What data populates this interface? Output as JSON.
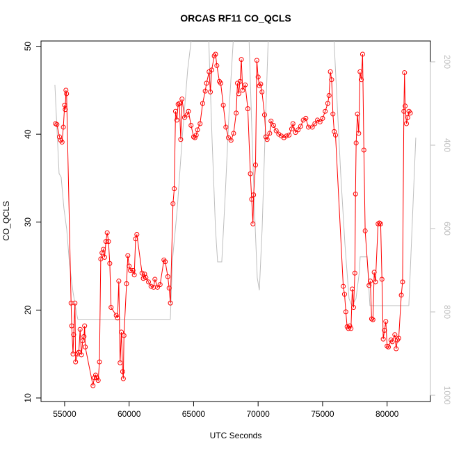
{
  "chart_data": {
    "type": "line",
    "title": "ORCAS RF11 CO_QCLS",
    "xlabel": "UTC Seconds",
    "ylabel": "CO_QCLS",
    "xlim": [
      53170,
      83360
    ],
    "ylim": [
      9.6,
      50.6
    ],
    "y2lim": [
      1015,
      150
    ],
    "xticks": [
      55000,
      60000,
      65000,
      70000,
      75000,
      80000
    ],
    "yticks": [
      10,
      20,
      30,
      40,
      50
    ],
    "y2ticks": [
      200,
      400,
      600,
      800,
      1000
    ],
    "series": [
      {
        "color": "#bebebe",
        "axis": "y2",
        "x": [
          54245,
          54569,
          54731,
          54946,
          55162,
          55377,
          55647,
          55916,
          56024,
          63194,
          63356,
          63733,
          64111,
          64542,
          64866,
          66159,
          66429,
          66698,
          66860,
          67183,
          67453,
          67777,
          68100,
          69286,
          69502,
          69717,
          69933,
          70095,
          70310,
          70580,
          70795,
          75863,
          76132,
          76402,
          76725,
          77049,
          77265,
          77588,
          77857,
          77911,
          78450,
          78666,
          81685,
          82224
        ],
        "values": [
          255,
          468,
          477,
          552,
          602,
          685,
          752,
          802,
          818,
          818,
          677,
          552,
          385,
          218,
          135,
          135,
          385,
          602,
          680,
          680,
          518,
          302,
          135,
          135,
          352,
          552,
          718,
          748,
          602,
          335,
          135,
          135,
          302,
          468,
          635,
          768,
          785,
          768,
          702,
          668,
          668,
          785,
          785,
          382
        ]
      },
      {
        "color": "#ff0000",
        "x": [
          54300,
          54400,
          54600,
          54700,
          54800,
          54900,
          55000,
          55050,
          55100,
          55150,
          55500,
          55550,
          55650,
          55700,
          55800,
          55850,
          56000,
          56100,
          56200,
          56300,
          56400,
          56500,
          56550,
          56600,
          57200,
          57300,
          57400,
          57500,
          57600,
          57700,
          57800,
          57900,
          58000,
          58100,
          58200,
          58300,
          58400,
          58500,
          58600,
          59000,
          59100,
          59200,
          59300,
          59400,
          59500,
          59550,
          59600,
          59800,
          59900,
          60000,
          60100,
          60300,
          60400,
          60500,
          60600,
          61000,
          61100,
          61200,
          61300,
          61500,
          61700,
          61900,
          62000,
          62200,
          62400,
          62700,
          62800,
          63000,
          63100,
          63200,
          63400,
          63500,
          63600,
          63700,
          63800,
          63900,
          64000,
          64100,
          64300,
          64500,
          64600,
          64800,
          65000,
          65100,
          65200,
          65300,
          65500,
          65700,
          65900,
          66000,
          66200,
          66300,
          66400,
          66600,
          66700,
          66800,
          67000,
          67100,
          67300,
          67500,
          67700,
          67900,
          68100,
          68300,
          68400,
          68500,
          68600,
          68700,
          68800,
          69000,
          69200,
          69400,
          69500,
          69600,
          69650,
          69800,
          69900,
          70000,
          70100,
          70200,
          70300,
          70500,
          70600,
          70700,
          70900,
          71000,
          71200,
          71400,
          71600,
          71800,
          72000,
          72200,
          72400,
          72600,
          72700,
          72900,
          73100,
          73300,
          73500,
          73700,
          73900,
          74200,
          74400,
          74600,
          74800,
          75000,
          75200,
          75400,
          75500,
          75600,
          75700,
          75800,
          75900,
          76000,
          76600,
          76700,
          76800,
          76900,
          77000,
          77100,
          77200,
          77300,
          77400,
          77500,
          77550,
          77600,
          77700,
          77800,
          77900,
          78000,
          78100,
          78200,
          78300,
          78600,
          78700,
          78800,
          78900,
          79000,
          79100,
          79300,
          79400,
          79500,
          79600,
          79700,
          79800,
          79900,
          80000,
          80100,
          80300,
          80400,
          80600,
          80700,
          80800,
          80900,
          81100,
          81200,
          81300,
          81350,
          81400,
          81500,
          81600,
          81700,
          81800
        ],
        "values": [
          41.2,
          41.1,
          39.7,
          39.3,
          39.1,
          40.8,
          43.3,
          42.8,
          45.0,
          44.6,
          20.8,
          18.2,
          15.0,
          17.2,
          20.8,
          14.1,
          15.0,
          15.2,
          17.8,
          14.9,
          16.5,
          17.0,
          18.2,
          15.8,
          11.4,
          12.3,
          12.6,
          12.3,
          12.0,
          14.1,
          25.8,
          26.5,
          26.9,
          26.0,
          27.8,
          28.8,
          27.8,
          25.3,
          20.3,
          19.4,
          19.1,
          23.3,
          14.0,
          17.5,
          13.0,
          12.2,
          17.1,
          23.0,
          26.2,
          25.0,
          24.5,
          24.5,
          24.0,
          28.1,
          28.6,
          24.2,
          23.6,
          24.1,
          23.7,
          23.2,
          22.7,
          22.6,
          23.5,
          22.6,
          22.9,
          25.7,
          25.5,
          23.8,
          22.5,
          20.8,
          32.1,
          33.8,
          42.6,
          41.6,
          43.4,
          43.5,
          39.4,
          44.0,
          41.9,
          42.2,
          42.6,
          41.0,
          39.7,
          39.6,
          39.9,
          40.5,
          41.2,
          43.5,
          44.9,
          45.8,
          47.1,
          44.8,
          47.3,
          48.9,
          49.1,
          47.8,
          46.0,
          45.8,
          43.3,
          40.8,
          39.6,
          39.3,
          40.1,
          42.4,
          45.8,
          44.6,
          46.0,
          48.5,
          45.0,
          45.6,
          42.9,
          35.5,
          32.6,
          29.8,
          33.1,
          36.5,
          48.4,
          46.5,
          45.5,
          45.7,
          44.8,
          42.2,
          39.7,
          39.4,
          40.1,
          41.5,
          41.0,
          40.4,
          40.0,
          39.8,
          39.6,
          39.8,
          39.9,
          40.6,
          41.2,
          40.2,
          40.5,
          40.9,
          41.6,
          41.8,
          40.8,
          40.8,
          41.2,
          41.6,
          41.4,
          41.8,
          42.6,
          43.5,
          44.4,
          47.1,
          46.2,
          42.3,
          40.3,
          39.9,
          22.7,
          21.8,
          19.8,
          18.1,
          17.9,
          18.2,
          17.9,
          22.4,
          20.3,
          24.2,
          33.2,
          39.0,
          42.3,
          40.1,
          47.1,
          46.2,
          49.1,
          38.2,
          29.0,
          22.8,
          23.3,
          19.0,
          18.9,
          24.3,
          23.2,
          29.8,
          29.9,
          29.8,
          23.5,
          16.7,
          17.7,
          18.7,
          15.9,
          15.8,
          16.6,
          16.4,
          17.2,
          15.6,
          16.6,
          16.8,
          21.7,
          23.2,
          42.6,
          47.0,
          43.2,
          41.2,
          41.9,
          42.6,
          42.4
        ]
      }
    ]
  }
}
